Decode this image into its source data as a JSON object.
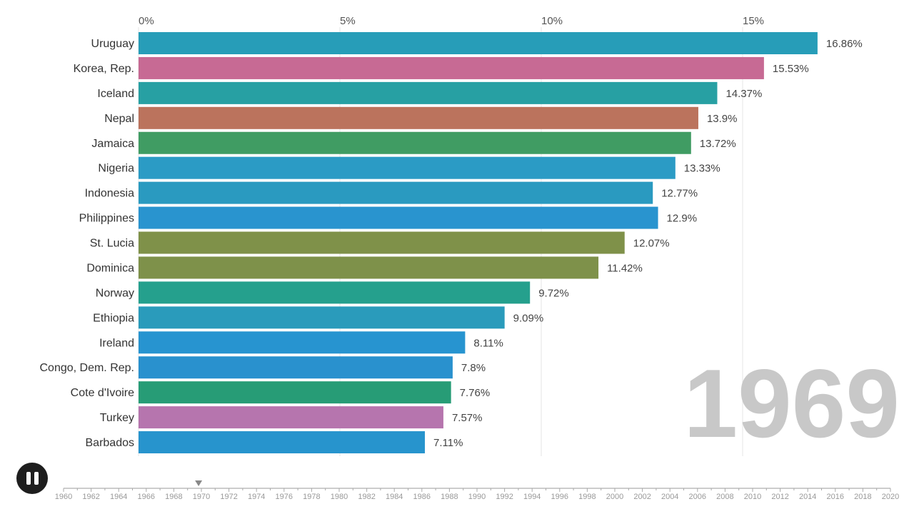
{
  "chart_data": {
    "type": "bar",
    "orientation": "horizontal",
    "x_ticks": [
      "0%",
      "5%",
      "10%",
      "15%"
    ],
    "x_tick_values": [
      0,
      5,
      10,
      15
    ],
    "xlim": [
      0,
      17
    ],
    "grid": true,
    "categories": [
      "Uruguay",
      "Korea, Rep.",
      "Iceland",
      "Nepal",
      "Jamaica",
      "Nigeria",
      "Indonesia",
      "Philippines",
      "St. Lucia",
      "Dominica",
      "Norway",
      "Ethiopia",
      "Ireland",
      "Congo, Dem. Rep.",
      "Cote d'Ivoire",
      "Turkey",
      "Barbados"
    ],
    "values": [
      16.86,
      15.53,
      14.37,
      13.9,
      13.72,
      13.33,
      12.77,
      12.9,
      12.07,
      11.42,
      9.72,
      9.09,
      8.11,
      7.8,
      7.76,
      7.57,
      7.11
    ],
    "value_labels": [
      "16.86%",
      "15.53%",
      "14.37%",
      "13.9%",
      "13.72%",
      "13.33%",
      "12.77%",
      "12.9%",
      "12.07%",
      "11.42%",
      "9.72%",
      "9.09%",
      "8.11%",
      "7.8%",
      "7.76%",
      "7.57%",
      "7.11%"
    ],
    "colors": [
      "#279db8",
      "#c76a94",
      "#27a0a3",
      "#bb735d",
      "#409c63",
      "#2b9bc5",
      "#2a9ac0",
      "#2994cf",
      "#7f9149",
      "#7e914a",
      "#25a08d",
      "#2a9bbb",
      "#2794d0",
      "#2991ce",
      "#279c76",
      "#b675ae",
      "#2794cd"
    ],
    "year": "1969",
    "timeline": {
      "labels": [
        "1960",
        "1962",
        "1964",
        "1966",
        "1968",
        "1970",
        "1972",
        "1974",
        "1976",
        "1978",
        "1980",
        "1982",
        "1984",
        "1986",
        "1988",
        "1990",
        "1992",
        "1994",
        "1996",
        "1998",
        "2000",
        "2002",
        "2004",
        "2006",
        "2008",
        "2010",
        "2012",
        "2014",
        "2016",
        "2018",
        "2020"
      ],
      "start": 1960,
      "end": 2020,
      "current": 1969.8
    }
  },
  "controls": {
    "pause_icon": "pause-icon"
  }
}
